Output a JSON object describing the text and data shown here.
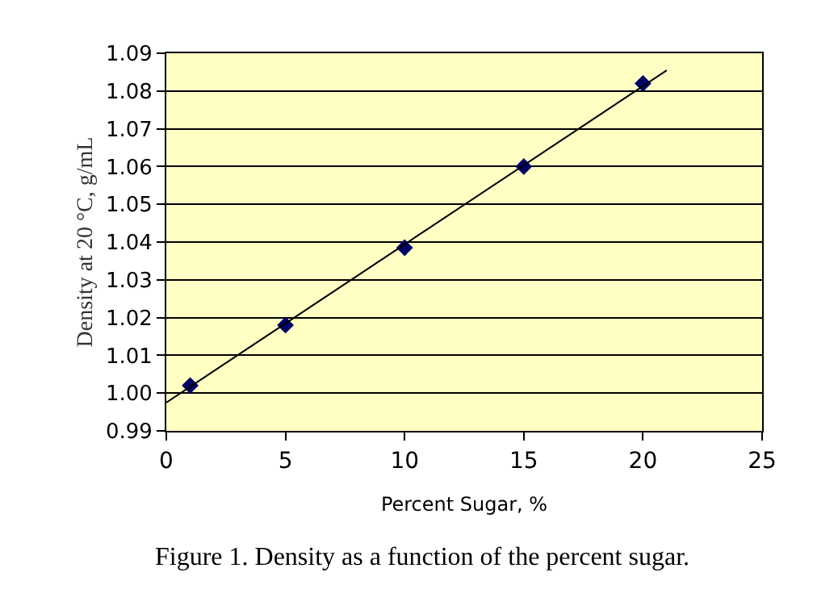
{
  "chart_data": {
    "type": "scatter",
    "xlabel": "Percent Sugar, %",
    "ylabel": "Density at 20 °C, g/mL",
    "x": [
      1,
      5,
      10,
      15,
      20
    ],
    "series": [
      {
        "color": "#000066",
        "values": [
          1.002,
          1.018,
          1.0385,
          1.06,
          1.082
        ],
        "marker": "diamond"
      },
      {
        "type": "line",
        "color": "#000000",
        "x": [
          0,
          21
        ],
        "values": [
          0.9975,
          1.0855
        ],
        "marker": "none",
        "line_style": "solid"
      }
    ],
    "xlim": [
      0,
      25
    ],
    "xticks": [
      0,
      5,
      10,
      15,
      20,
      25
    ],
    "ylim": [
      0.99,
      1.09
    ],
    "yticks": [
      {
        "value": 0.99,
        "label": "0.99"
      },
      {
        "value": 1.0,
        "label": "1.00"
      },
      {
        "value": 1.01,
        "label": "1.01"
      },
      {
        "value": 1.02,
        "label": "1.02"
      },
      {
        "value": 1.03,
        "label": "1.03"
      },
      {
        "value": 1.04,
        "label": "1.04"
      },
      {
        "value": 1.05,
        "label": "1.05"
      },
      {
        "value": 1.06,
        "label": "1.06"
      },
      {
        "value": 1.07,
        "label": "1.07"
      },
      {
        "value": 1.08,
        "label": "1.08"
      },
      {
        "value": 1.09,
        "label": "1.09"
      }
    ],
    "grid": "y",
    "annotations": [
      "Figure 1. Density as a function of the percent sugar."
    ]
  }
}
